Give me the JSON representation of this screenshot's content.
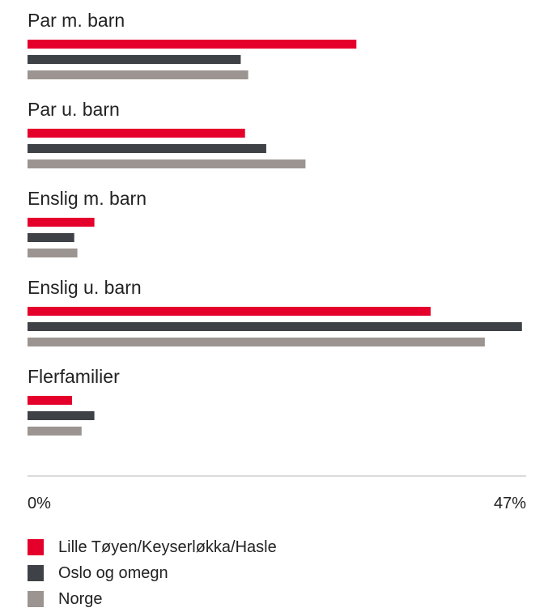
{
  "chart_data": {
    "type": "bar",
    "orientation": "horizontal",
    "categories": [
      "Par m. barn",
      "Par u. barn",
      "Enslig m. barn",
      "Enslig u. barn",
      "Flerfamilier"
    ],
    "series": [
      {
        "name": "Lille Tøyen/Keyserløkka/Hasle",
        "color": "#e4002b",
        "values": [
          31,
          20.5,
          6.3,
          38,
          4.2
        ]
      },
      {
        "name": "Oslo og omegn",
        "color": "#3e4246",
        "values": [
          20.1,
          22.5,
          4.4,
          46.6,
          6.3
        ]
      },
      {
        "name": "Norge",
        "color": "#9b9490",
        "values": [
          20.8,
          26.2,
          4.7,
          43.1,
          5.1
        ]
      }
    ],
    "xlim": [
      0,
      47
    ],
    "xticks": [
      "0%",
      "47%"
    ],
    "legend": "bottom"
  }
}
